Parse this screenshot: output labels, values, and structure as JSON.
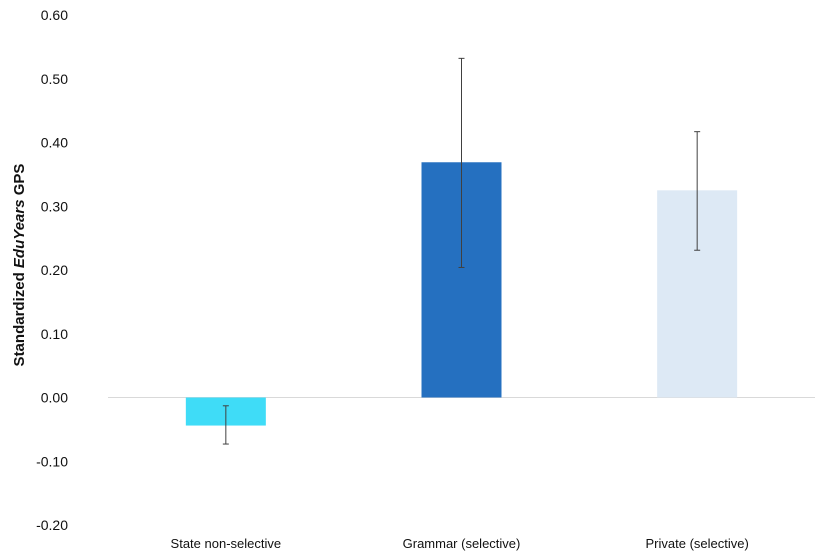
{
  "chart_data": {
    "type": "bar",
    "title": "",
    "xlabel": "",
    "ylabel_parts": [
      {
        "text": "Standardized ",
        "italic": false
      },
      {
        "text": "EduYears",
        "italic": true
      },
      {
        "text": " GPS",
        "italic": false
      }
    ],
    "ylim": [
      -0.2,
      0.6
    ],
    "yticks": [
      -0.2,
      -0.1,
      0.0,
      0.1,
      0.2,
      0.3,
      0.4,
      0.5,
      0.6
    ],
    "ytick_labels": [
      "-0.20",
      "-0.10",
      "0.00",
      "0.10",
      "0.20",
      "0.30",
      "0.40",
      "0.50",
      "0.60"
    ],
    "grid": false,
    "categories": [
      "State non-selective",
      "Grammar (selective)",
      "Private (selective)"
    ],
    "values": [
      -0.044,
      0.369,
      0.325
    ],
    "error_low": [
      -0.073,
      0.204,
      0.231
    ],
    "error_high": [
      -0.013,
      0.532,
      0.417
    ],
    "colors": [
      "#3fdcf7",
      "#2570c0",
      "#dde9f5"
    ],
    "axis_line_color": "#d9d9d9",
    "error_bar_color": "#404040"
  }
}
